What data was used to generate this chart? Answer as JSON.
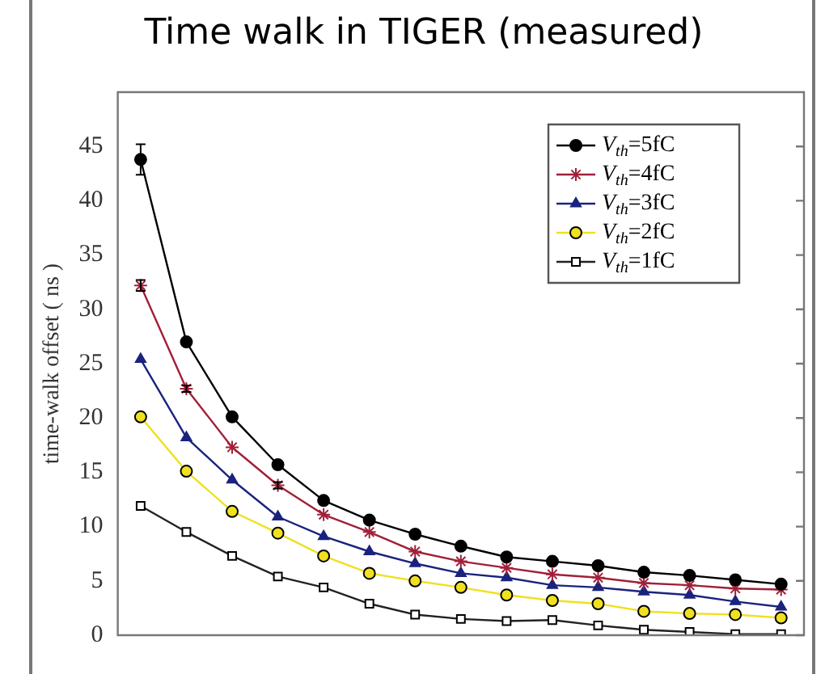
{
  "chart_data": {
    "type": "line",
    "title": "Time walk in TIGER (measured)",
    "ylabel": "time-walk offset ( ns )",
    "categories": [
      null,
      null,
      null,
      null,
      null,
      null,
      null,
      null,
      null,
      null,
      null,
      null,
      null,
      null,
      null
    ],
    "ylim": [
      0,
      50
    ],
    "yticks": [
      0,
      5,
      10,
      15,
      20,
      25,
      30,
      35,
      40,
      45
    ],
    "grid": false,
    "legend": "top right",
    "line_style": "solid",
    "series": [
      {
        "name": "V$_{th}$=5fC",
        "color": "#000000",
        "marker": "circle",
        "values": [
          43.8,
          27.0,
          20.1,
          15.7,
          12.4,
          10.6,
          9.3,
          8.2,
          7.2,
          6.8,
          6.4,
          5.8,
          5.5,
          5.1,
          4.7
        ],
        "errors": [
          1.4,
          null,
          null,
          null,
          null,
          null,
          null,
          null,
          null,
          null,
          null,
          null,
          null,
          null,
          null
        ]
      },
      {
        "name": "V$_{th}$=4fC",
        "color": "#a02038",
        "marker": "cross",
        "values": [
          32.2,
          22.7,
          17.3,
          13.8,
          11.1,
          9.5,
          7.7,
          6.8,
          6.2,
          5.6,
          5.3,
          4.8,
          4.6,
          4.3,
          4.2
        ],
        "errors": [
          0.5,
          0.3,
          null,
          0.3,
          null,
          null,
          null,
          null,
          null,
          null,
          null,
          null,
          null,
          null,
          null
        ]
      },
      {
        "name": "V$_{th}$=3fC",
        "color": "#1a237e",
        "marker": "triangle",
        "values": [
          25.4,
          18.2,
          14.3,
          10.9,
          9.1,
          7.7,
          6.6,
          5.7,
          5.3,
          4.6,
          4.4,
          4.0,
          3.7,
          3.1,
          2.6
        ]
      },
      {
        "name": "V$_{th}$=2fC",
        "color": "#f0e020",
        "marker": "circle",
        "values": [
          20.1,
          15.1,
          11.4,
          9.4,
          7.3,
          5.7,
          5.0,
          4.4,
          3.7,
          3.2,
          2.9,
          2.2,
          2.0,
          1.9,
          1.6
        ]
      },
      {
        "name": "V$_{th}$=1fC",
        "color": "#222222",
        "marker": "square",
        "values": [
          11.9,
          9.5,
          7.3,
          5.4,
          4.4,
          2.9,
          1.9,
          1.5,
          1.3,
          1.4,
          0.9,
          0.5,
          0.3,
          0.1,
          0.1
        ]
      }
    ]
  }
}
